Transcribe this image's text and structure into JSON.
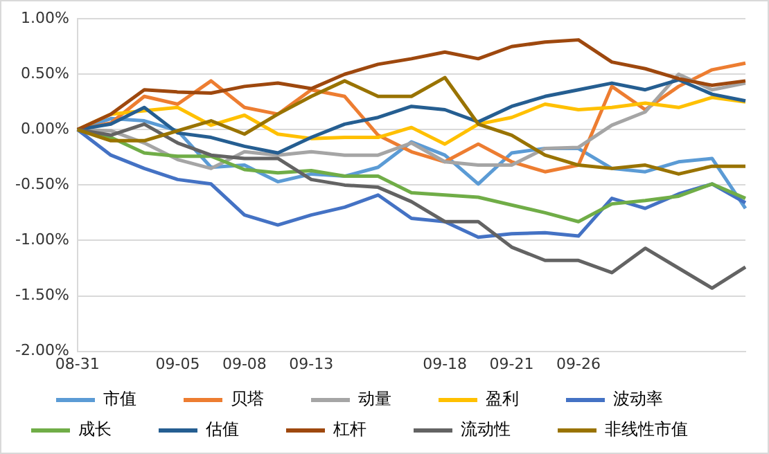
{
  "chart_data": {
    "type": "line",
    "categories": [
      "08-31",
      null,
      null,
      "09-05",
      null,
      "09-08",
      null,
      "09-13",
      null,
      null,
      null,
      "09-18",
      null,
      "09-21",
      null,
      "09-26",
      null,
      null,
      null,
      null,
      null
    ],
    "ylim": [
      -2,
      1
    ],
    "yticks": [
      {
        "value": -2,
        "label": "-2.00%"
      },
      {
        "value": -1.5,
        "label": "-1.50%"
      },
      {
        "value": -1,
        "label": "-1.00%"
      },
      {
        "value": -0.5,
        "label": "-0.50%"
      },
      {
        "value": 0,
        "label": "0.00%"
      },
      {
        "value": 0.5,
        "label": "0.50%"
      },
      {
        "value": 1,
        "label": "1.00%"
      }
    ],
    "grid": "y",
    "legend": "bottom",
    "marker": "none",
    "line_style": "solid",
    "series": [
      {
        "name": "市值",
        "color": "#5b9bd5",
        "values": [
          0,
          0.1,
          0.08,
          -0.01,
          -0.34,
          -0.32,
          -0.47,
          -0.4,
          -0.42,
          -0.34,
          -0.11,
          -0.23,
          -0.49,
          -0.21,
          -0.17,
          -0.17,
          -0.35,
          -0.38,
          -0.29,
          -0.26,
          -0.71
        ]
      },
      {
        "name": "贝塔",
        "color": "#ed7d31",
        "values": [
          0,
          0.06,
          0.3,
          0.23,
          0.44,
          0.2,
          0.14,
          0.36,
          0.3,
          -0.05,
          -0.2,
          -0.29,
          -0.13,
          -0.29,
          -0.38,
          -0.32,
          0.39,
          0.18,
          0.39,
          0.54,
          0.6
        ]
      },
      {
        "name": "动量",
        "color": "#a5a5a5",
        "values": [
          0,
          -0.01,
          -0.12,
          -0.27,
          -0.35,
          -0.2,
          -0.23,
          -0.2,
          -0.23,
          -0.23,
          -0.12,
          -0.29,
          -0.32,
          -0.32,
          -0.17,
          -0.16,
          0.04,
          0.16,
          0.5,
          0.36,
          0.42
        ]
      },
      {
        "name": "盈利",
        "color": "#ffc000",
        "values": [
          0,
          0.14,
          0.17,
          0.2,
          0.04,
          0.13,
          -0.04,
          -0.08,
          -0.07,
          -0.07,
          0.02,
          -0.13,
          0.05,
          0.11,
          0.23,
          0.18,
          0.2,
          0.24,
          0.2,
          0.29,
          0.25
        ]
      },
      {
        "name": "波动率",
        "color": "#4472c4",
        "values": [
          0,
          -0.23,
          -0.35,
          -0.45,
          -0.49,
          -0.77,
          -0.86,
          -0.77,
          -0.7,
          -0.59,
          -0.8,
          -0.83,
          -0.97,
          -0.94,
          -0.93,
          -0.96,
          -0.62,
          -0.71,
          -0.58,
          -0.49,
          -0.66
        ]
      },
      {
        "name": "成长",
        "color": "#70ad47",
        "values": [
          0,
          -0.07,
          -0.21,
          -0.24,
          -0.24,
          -0.36,
          -0.39,
          -0.37,
          -0.42,
          -0.42,
          -0.57,
          -0.59,
          -0.61,
          -0.68,
          -0.75,
          -0.83,
          -0.67,
          -0.64,
          -0.6,
          -0.49,
          -0.62
        ]
      },
      {
        "name": "估值",
        "color": "#255e91",
        "values": [
          0,
          0.05,
          0.2,
          -0.03,
          -0.07,
          -0.15,
          -0.21,
          -0.07,
          0.05,
          0.11,
          0.21,
          0.18,
          0.07,
          0.21,
          0.3,
          0.36,
          0.42,
          0.36,
          0.45,
          0.32,
          0.26
        ]
      },
      {
        "name": "杠杆",
        "color": "#9e480e",
        "values": [
          0,
          0.14,
          0.36,
          0.34,
          0.33,
          0.39,
          0.42,
          0.37,
          0.5,
          0.59,
          0.64,
          0.7,
          0.64,
          0.75,
          0.79,
          0.81,
          0.61,
          0.55,
          0.46,
          0.4,
          0.44
        ]
      },
      {
        "name": "流动性",
        "color": "#636363",
        "values": [
          0,
          -0.05,
          0.05,
          -0.12,
          -0.23,
          -0.26,
          -0.26,
          -0.45,
          -0.5,
          -0.52,
          -0.65,
          -0.83,
          -0.83,
          -1.06,
          -1.18,
          -1.18,
          -1.29,
          -1.07,
          -1.25,
          -1.43,
          -1.24
        ]
      },
      {
        "name": "非线性市值",
        "color": "#997300",
        "values": [
          0,
          -0.1,
          -0.1,
          -0.01,
          0.08,
          -0.04,
          0.14,
          0.3,
          0.44,
          0.3,
          0.3,
          0.47,
          0.05,
          -0.05,
          -0.23,
          -0.32,
          -0.35,
          -0.32,
          -0.4,
          -0.33,
          -0.33
        ]
      }
    ]
  }
}
